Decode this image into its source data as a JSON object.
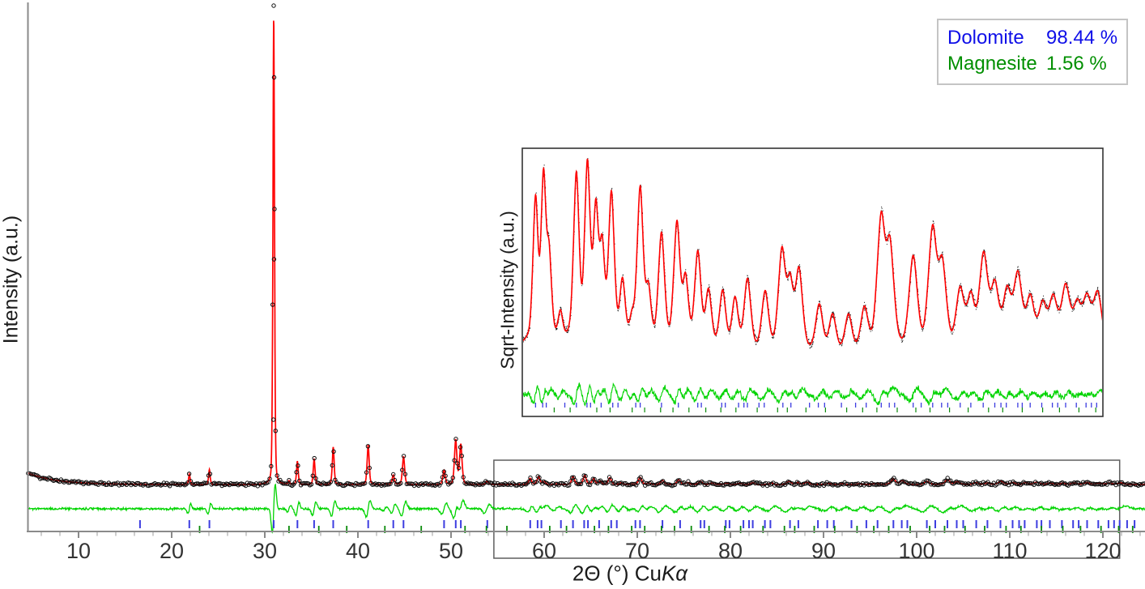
{
  "legend": {
    "entries": [
      {
        "label": "Dolomite",
        "value": "98.44 %",
        "color": "#0f0fe8"
      },
      {
        "label": "Magnesite",
        "value": "1.56 %",
        "color": "#008f00"
      }
    ]
  },
  "colors": {
    "observed": "#0d0d0d",
    "calculated": "#ff0000",
    "difference": "#00d400",
    "dolomite_tick": "#3d3de0",
    "magnesite_tick": "#0a8a0a",
    "axis": "#8a8a8a",
    "minor_tick": "#b8b8b8",
    "tick_label": "#333333",
    "zoom_box": "#5f5f5f",
    "inset_frame": "#333333"
  },
  "chart_data": {
    "type": "line",
    "subtype": "xrd-rietveld-refinement",
    "title": "",
    "xlabel_prefix": "2Θ (°) Cu",
    "xlabel_italic": "Kα",
    "ylabel": "Intensity (a.u.)",
    "x_range": [
      4.6,
      124.5
    ],
    "x_major_ticks": [
      10,
      20,
      30,
      40,
      50,
      60,
      70,
      80,
      90,
      100,
      110,
      120
    ],
    "x_minor_tick_step": 2,
    "y_axis": "arbitrary units, no tick labels",
    "legend_position": "top-right",
    "grid": false,
    "series": [
      {
        "name": "observed",
        "style": "black open circles"
      },
      {
        "name": "calculated",
        "style": "red solid line"
      },
      {
        "name": "difference",
        "style": "green line below pattern"
      },
      {
        "name": "dolomite-reflection-ticks",
        "style": "blue vertical bars"
      },
      {
        "name": "magnesite-reflection-ticks",
        "style": "green vertical bars"
      }
    ],
    "phases": [
      {
        "name": "Dolomite",
        "fraction_percent": 98.44
      },
      {
        "name": "Magnesite",
        "fraction_percent": 1.56
      }
    ],
    "peaks_dolomite": [
      [
        21.9,
        2.2
      ],
      [
        24.05,
        3.2
      ],
      [
        30.96,
        100
      ],
      [
        33.5,
        5.0
      ],
      [
        35.3,
        5.5
      ],
      [
        37.35,
        8.0
      ],
      [
        41.1,
        8.5
      ],
      [
        43.8,
        2.0
      ],
      [
        44.9,
        6.0
      ],
      [
        49.25,
        3.0
      ],
      [
        50.5,
        9.5
      ],
      [
        51.05,
        8.5
      ],
      [
        53.9,
        0.5
      ],
      [
        58.5,
        1.3
      ],
      [
        59.4,
        1.7
      ],
      [
        60.0,
        0.6
      ],
      [
        63.1,
        1.7
      ],
      [
        64.35,
        1.9
      ],
      [
        65.3,
        1.2
      ],
      [
        66.0,
        0.7
      ],
      [
        67.05,
        1.4
      ],
      [
        68.3,
        0.35
      ],
      [
        70.3,
        1.5
      ],
      [
        71.2,
        0.3
      ],
      [
        72.7,
        0.85
      ],
      [
        74.45,
        1.0
      ],
      [
        75.4,
        0.4
      ],
      [
        76.8,
        0.65
      ],
      [
        78.0,
        0.3
      ],
      [
        79.6,
        0.3
      ],
      [
        81.0,
        0.25
      ],
      [
        82.4,
        0.4
      ],
      [
        84.4,
        0.3
      ],
      [
        86.3,
        0.7
      ],
      [
        87.2,
        0.4
      ],
      [
        88.2,
        0.5
      ],
      [
        90.5,
        0.22
      ],
      [
        92.0,
        0.16
      ],
      [
        93.8,
        0.16
      ],
      [
        95.6,
        0.2
      ],
      [
        97.5,
        1.15
      ],
      [
        98.45,
        0.8
      ],
      [
        101.1,
        0.65
      ],
      [
        103.3,
        1.0
      ],
      [
        104.35,
        0.6
      ],
      [
        106.4,
        0.35
      ],
      [
        107.6,
        0.3
      ],
      [
        109.05,
        0.7
      ],
      [
        110.3,
        0.4
      ],
      [
        111.7,
        0.35
      ],
      [
        112.9,
        0.5
      ],
      [
        114.3,
        0.3
      ],
      [
        115.7,
        0.25
      ],
      [
        116.9,
        0.3
      ],
      [
        118.3,
        0.4
      ],
      [
        119.6,
        0.25
      ],
      [
        120.7,
        0.3
      ],
      [
        121.9,
        0.35
      ]
    ],
    "peaks_magnesite": [
      [
        32.6,
        0.8
      ],
      [
        42.9,
        0.2
      ],
      [
        53.8,
        0.2
      ],
      [
        61.3,
        0.12
      ],
      [
        69.4,
        0.1
      ]
    ],
    "reflection_ticks_dolomite": [
      16.6,
      21.9,
      24.05,
      30.96,
      33.5,
      35.3,
      37.35,
      41.1,
      43.8,
      44.9,
      49.25,
      50.5,
      51.05,
      53.9,
      58.5,
      59.3,
      59.7,
      61.8,
      63.1,
      64.3,
      64.7,
      65.9,
      67.2,
      67.8,
      69.8,
      70.3,
      72.7,
      74.6,
      76.8,
      77.2,
      79.5,
      79.9,
      81.4,
      82.0,
      82.4,
      83.7,
      84.3,
      86.4,
      87.3,
      89.4,
      90.4,
      91.1,
      93.0,
      94.6,
      95.8,
      97.5,
      98.4,
      99.0,
      101.1,
      102.0,
      103.3,
      104.3,
      105.0,
      106.4,
      107.6,
      109.0,
      110.3,
      111.0,
      111.6,
      112.9,
      113.4,
      114.3,
      115.6,
      116.8,
      117.4,
      118.3,
      119.5,
      120.6,
      121.2,
      121.8,
      122.6,
      123.4
    ],
    "reflection_ticks_magnesite": [
      23.0,
      32.6,
      35.8,
      38.8,
      42.9,
      46.8,
      51.5,
      53.8,
      56.0,
      60.6,
      62.4,
      65.4,
      66.9,
      69.4,
      70.8,
      72.6,
      74.0,
      75.8,
      77.7,
      79.4,
      81.1,
      83.5,
      85.8,
      86.9,
      89.0,
      91.2,
      93.6,
      95.4,
      97.0,
      99.3,
      101.4,
      103.0,
      105.2,
      107.3,
      109.6,
      111.2,
      113.4,
      115.7,
      117.6,
      119.8,
      121.7,
      123.2
    ],
    "zoom_region": {
      "x_start": 54.6,
      "x_end": 121.8
    },
    "inset": {
      "ylabel": "Sqrt-Intensity (a.u.)",
      "x_range": [
        57.0,
        122.5
      ],
      "scale": "sqrt",
      "content": "square-root intensity blow-up of the high-angle region with observed points, red fit, green difference and reflection tick rows"
    }
  }
}
